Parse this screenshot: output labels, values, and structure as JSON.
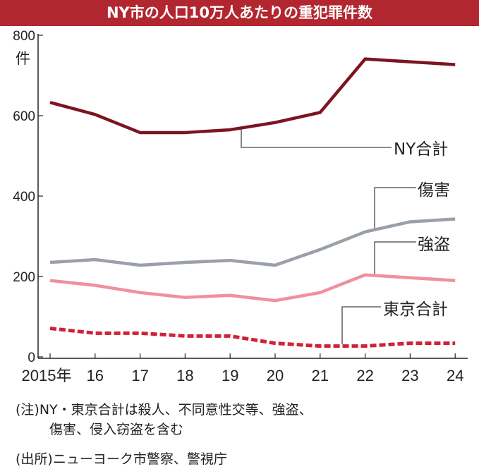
{
  "chart_data": {
    "type": "line",
    "title": "NY市の人口10万人あたりの重犯罪件数",
    "ylabel": "件",
    "ylim": [
      0,
      800
    ],
    "yticks": [
      0,
      200,
      400,
      600,
      800
    ],
    "categories": [
      "2015年",
      "16",
      "17",
      "18",
      "19",
      "20",
      "21",
      "22",
      "23",
      "24"
    ],
    "grid": false,
    "series": [
      {
        "name": "NY合計",
        "color": "#7d1420",
        "dashed": false,
        "values": [
          633,
          603,
          558,
          558,
          565,
          583,
          608,
          741,
          734,
          727
        ]
      },
      {
        "name": "傷害",
        "color": "#9aa0a8",
        "dashed": false,
        "values": [
          235,
          242,
          228,
          235,
          240,
          228,
          267,
          311,
          336,
          343
        ]
      },
      {
        "name": "強盗",
        "color": "#f0909c",
        "dashed": false,
        "values": [
          190,
          178,
          160,
          148,
          153,
          140,
          160,
          204,
          197,
          190
        ]
      },
      {
        "name": "東京合計",
        "color": "#d0213a",
        "dashed": true,
        "values": [
          71,
          59,
          59,
          52,
          52,
          34,
          27,
          27,
          34,
          34
        ]
      }
    ]
  },
  "notes": {
    "note_line1": "(注)NY・東京合計は殺人、不同意性交等、強盗、",
    "note_line2": "傷害、侵入窃盗を含む",
    "source": "(出所)ニューヨーク市警察、警視庁"
  }
}
